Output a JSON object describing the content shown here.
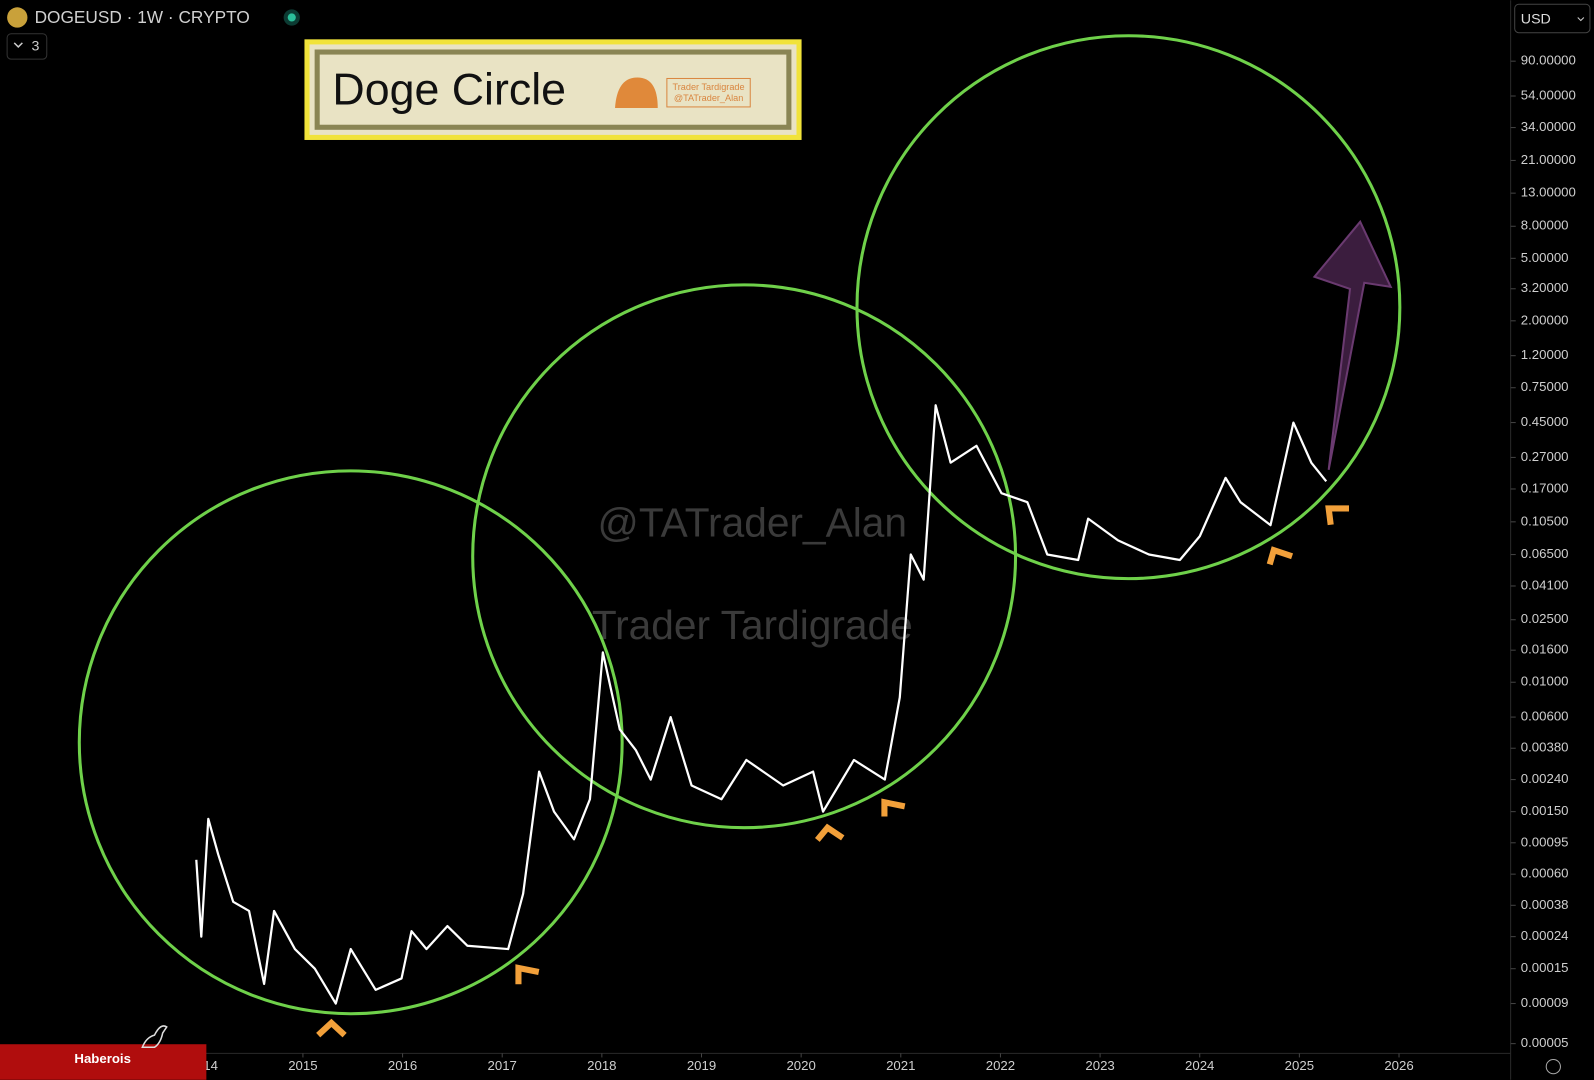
{
  "chart_data": {
    "type": "line",
    "symbol": "DOGEUSD · 1W · CRYPTO",
    "interval_count": "3",
    "currency": "USD",
    "title": "Doge Circle",
    "badge": [
      "Trader Tardigrade",
      "@TATrader_Alan"
    ],
    "watermarks": [
      "@TATrader_Alan",
      "Trader Tardigrade"
    ],
    "footer": "Haberois",
    "log_scale": true,
    "color": "#ffffff",
    "x": [
      2013.93,
      2013.98,
      2014.05,
      2014.15,
      2014.3,
      2014.46,
      2014.61,
      2014.71,
      2014.92,
      2015.12,
      2015.33,
      2015.48,
      2015.73,
      2015.99,
      2016.09,
      2016.24,
      2016.45,
      2016.65,
      2017.06,
      2017.21,
      2017.37,
      2017.52,
      2017.72,
      2017.88,
      2018.01,
      2018.18,
      2018.34,
      2018.49,
      2018.69,
      2018.9,
      2019.2,
      2019.45,
      2019.82,
      2020.12,
      2020.22,
      2020.53,
      2020.84,
      2020.99,
      2021.1,
      2021.23,
      2021.35,
      2021.5,
      2021.76,
      2022.01,
      2022.27,
      2022.47,
      2022.78,
      2022.88,
      2023.18,
      2023.49,
      2023.8,
      2024.0,
      2024.26,
      2024.41,
      2024.71,
      2024.94,
      2025.12,
      2025.27
    ],
    "values": [
      0.00074,
      0.00024,
      0.00135,
      0.0008,
      0.0004,
      0.00035,
      0.00012,
      0.00035,
      0.0002,
      0.00015,
      9e-05,
      0.0002,
      0.00011,
      0.00013,
      0.00026,
      0.0002,
      0.00028,
      0.00021,
      0.0002,
      0.00045,
      0.0027,
      0.0015,
      0.001,
      0.0018,
      0.0155,
      0.005,
      0.0037,
      0.0024,
      0.006,
      0.0022,
      0.0018,
      0.0032,
      0.0022,
      0.0027,
      0.0015,
      0.0032,
      0.0024,
      0.008,
      0.065,
      0.045,
      0.58,
      0.25,
      0.32,
      0.16,
      0.14,
      0.065,
      0.06,
      0.11,
      0.08,
      0.065,
      0.06,
      0.085,
      0.2,
      0.14,
      0.1,
      0.45,
      0.25,
      0.19
    ],
    "xlim": [
      2011.96,
      2027.11
    ],
    "xticks": [
      2014,
      2015,
      2016,
      2017,
      2018,
      2019,
      2020,
      2021,
      2022,
      2023,
      2024,
      2025,
      2026
    ],
    "ylim": [
      4.4e-05,
      220
    ],
    "yticks": [
      {
        "value": 90,
        "label": "90.00000"
      },
      {
        "value": 54,
        "label": "54.00000"
      },
      {
        "value": 34,
        "label": "34.00000"
      },
      {
        "value": 21,
        "label": "21.00000"
      },
      {
        "value": 13,
        "label": "13.00000"
      },
      {
        "value": 8,
        "label": "8.00000"
      },
      {
        "value": 5,
        "label": "5.00000"
      },
      {
        "value": 3.2,
        "label": "3.20000"
      },
      {
        "value": 2,
        "label": "2.00000"
      },
      {
        "value": 1.2,
        "label": "1.20000"
      },
      {
        "value": 0.75,
        "label": "0.75000"
      },
      {
        "value": 0.45,
        "label": "0.45000"
      },
      {
        "value": 0.27,
        "label": "0.27000"
      },
      {
        "value": 0.17,
        "label": "0.17000"
      },
      {
        "value": 0.105,
        "label": "0.10500"
      },
      {
        "value": 0.065,
        "label": "0.06500"
      },
      {
        "value": 0.041,
        "label": "0.04100"
      },
      {
        "value": 0.025,
        "label": "0.02500"
      },
      {
        "value": 0.016,
        "label": "0.01600"
      },
      {
        "value": 0.01,
        "label": "0.01000"
      },
      {
        "value": 0.006,
        "label": "0.00600"
      },
      {
        "value": 0.0038,
        "label": "0.00380"
      },
      {
        "value": 0.0024,
        "label": "0.00240"
      },
      {
        "value": 0.0015,
        "label": "0.00150"
      },
      {
        "value": 0.00095,
        "label": "0.00095"
      },
      {
        "value": 0.0006,
        "label": "0.00060"
      },
      {
        "value": 0.00038,
        "label": "0.00038"
      },
      {
        "value": 0.00024,
        "label": "0.00024"
      },
      {
        "value": 0.00015,
        "label": "0.00015"
      },
      {
        "value": 9e-05,
        "label": "0.00009"
      },
      {
        "value": 5e-05,
        "label": "0.00005"
      }
    ]
  }
}
